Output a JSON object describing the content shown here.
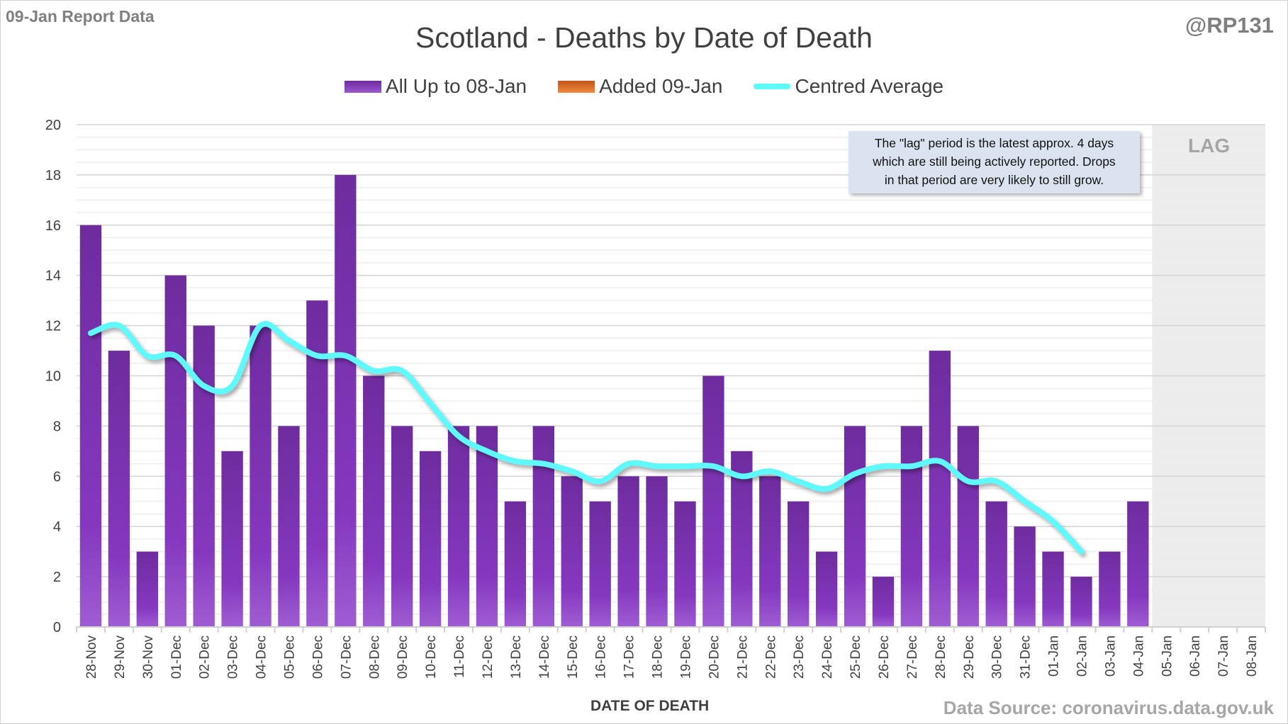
{
  "header": {
    "report_label": "09-Jan Report Data",
    "handle": "@RP131"
  },
  "note": {
    "lines": [
      "The \"lag\" period is the latest approx. 4 days",
      "which are still being actively reported.  Drops",
      "in that period are very likely to still grow."
    ],
    "lag_label": "LAG"
  },
  "footer": {
    "source": "Data Source: coronavirus.data.gov.uk"
  },
  "colors": {
    "bars": "#7b35b5",
    "added": "#e0702a",
    "average": "#5ff8fb",
    "lag_shade": "#ececec"
  },
  "chart_data": {
    "type": "bar",
    "title": "Scotland - Deaths by Date of Death",
    "xlabel": "DATE OF DEATH",
    "ylabel": "",
    "ylim": [
      0,
      20
    ],
    "yticks": [
      0,
      2,
      4,
      6,
      8,
      10,
      12,
      14,
      16,
      18,
      20
    ],
    "grid": true,
    "legend_position": "top",
    "categories": [
      "28-Nov",
      "29-Nov",
      "30-Nov",
      "01-Dec",
      "02-Dec",
      "03-Dec",
      "04-Dec",
      "05-Dec",
      "06-Dec",
      "07-Dec",
      "08-Dec",
      "09-Dec",
      "10-Dec",
      "11-Dec",
      "12-Dec",
      "13-Dec",
      "14-Dec",
      "15-Dec",
      "16-Dec",
      "17-Dec",
      "18-Dec",
      "19-Dec",
      "20-Dec",
      "21-Dec",
      "22-Dec",
      "23-Dec",
      "24-Dec",
      "25-Dec",
      "26-Dec",
      "27-Dec",
      "28-Dec",
      "29-Dec",
      "30-Dec",
      "31-Dec",
      "01-Jan",
      "02-Jan",
      "03-Jan",
      "04-Jan",
      "05-Jan",
      "06-Jan",
      "07-Jan",
      "08-Jan"
    ],
    "lag_categories": [
      "05-Jan",
      "06-Jan",
      "07-Jan",
      "08-Jan"
    ],
    "series": [
      {
        "name": "All Up to 08-Jan",
        "type": "bar",
        "values": [
          16,
          11,
          3,
          14,
          12,
          7,
          12,
          8,
          13,
          18,
          10,
          8,
          7,
          8,
          8,
          5,
          8,
          6,
          5,
          6,
          6,
          5,
          10,
          7,
          6,
          5,
          3,
          8,
          2,
          8,
          11,
          8,
          5,
          4,
          3,
          2,
          3,
          5,
          0,
          0,
          0,
          0
        ]
      },
      {
        "name": "Added 09-Jan",
        "type": "bar",
        "values": [
          0,
          0,
          0,
          0,
          0,
          0,
          0,
          0,
          0,
          0,
          0,
          0,
          0,
          0,
          0,
          0,
          0,
          0,
          0,
          0,
          0,
          0,
          0,
          0,
          0,
          0,
          0,
          0,
          0,
          0,
          0,
          0,
          0,
          0,
          0,
          0,
          0,
          0,
          0,
          0,
          0,
          0
        ]
      },
      {
        "name": "Centred Average",
        "type": "line",
        "values": [
          11.7,
          12.0,
          10.8,
          10.8,
          9.6,
          9.6,
          12.0,
          11.4,
          10.8,
          10.8,
          10.2,
          10.2,
          8.9,
          7.6,
          7.0,
          6.6,
          6.5,
          6.2,
          5.8,
          6.5,
          6.4,
          6.4,
          6.4,
          6.0,
          6.2,
          5.8,
          5.5,
          6.1,
          6.4,
          6.4,
          6.6,
          5.8,
          5.8,
          5.0,
          4.2,
          3.0,
          null,
          null,
          null,
          null,
          null,
          null
        ]
      }
    ]
  }
}
